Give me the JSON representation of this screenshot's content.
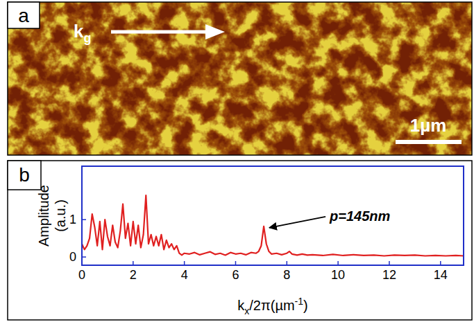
{
  "image_panel": {
    "label": "a",
    "arrow_label": "k",
    "arrow_subscript": "g",
    "scale_bar": "1µm"
  },
  "chart_data": {
    "type": "line",
    "panel": "b",
    "color": "#e02020",
    "ylabel": "Amplitude (a.u.)",
    "xlabel": [
      "k",
      "x",
      "/2π(µm",
      "-1",
      ")"
    ],
    "annotations": [
      {
        "text": "p=145nm",
        "x": 7.1,
        "y": 0.82
      }
    ],
    "xlim": [
      0,
      14.9
    ],
    "ylim": [
      -0.22,
      2.43
    ],
    "xticks": [
      0,
      2,
      4,
      6,
      8,
      10,
      12,
      14
    ],
    "yticks": [
      0,
      1
    ],
    "x": [
      0,
      0.1,
      0.2,
      0.3,
      0.4,
      0.5,
      0.6,
      0.7,
      0.8,
      0.9,
      1.0,
      1.1,
      1.2,
      1.3,
      1.4,
      1.5,
      1.6,
      1.7,
      1.8,
      1.9,
      2.0,
      2.1,
      2.2,
      2.3,
      2.4,
      2.5,
      2.6,
      2.7,
      2.8,
      2.9,
      3.0,
      3.1,
      3.2,
      3.3,
      3.4,
      3.5,
      3.6,
      3.7,
      3.8,
      3.9,
      4.0,
      4.2,
      4.4,
      4.6,
      4.8,
      5.0,
      5.2,
      5.4,
      5.6,
      5.8,
      6.0,
      6.2,
      6.4,
      6.6,
      6.8,
      6.9,
      7.0,
      7.1,
      7.2,
      7.3,
      7.4,
      7.6,
      7.8,
      8.0,
      8.1,
      8.2,
      8.4,
      8.6,
      8.8,
      9.0,
      9.4,
      9.8,
      10.2,
      10.6,
      11.0,
      11.4,
      11.8,
      12.2,
      12.6,
      13.0,
      13.4,
      13.8,
      14.2,
      14.6,
      14.9
    ],
    "values": [
      0.35,
      0.2,
      0.3,
      0.5,
      1.15,
      0.8,
      0.3,
      0.95,
      0.2,
      1.0,
      0.55,
      0.3,
      0.85,
      0.4,
      0.25,
      0.7,
      1.42,
      0.5,
      0.9,
      0.3,
      0.95,
      0.35,
      0.85,
      0.25,
      0.6,
      1.65,
      0.35,
      0.6,
      0.3,
      0.55,
      0.3,
      0.6,
      0.2,
      0.45,
      0.25,
      0.35,
      0.2,
      0.3,
      0.1,
      0.05,
      0.1,
      0.08,
      0.12,
      0.06,
      0.1,
      0.14,
      0.07,
      0.1,
      0.05,
      0.12,
      0.08,
      0.1,
      0.06,
      0.12,
      0.1,
      0.15,
      0.3,
      0.82,
      0.35,
      0.15,
      0.08,
      0.1,
      0.06,
      0.1,
      0.15,
      0.08,
      0.05,
      0.08,
      0.05,
      0.06,
      0.04,
      0.07,
      0.04,
      0.06,
      0.04,
      0.05,
      0.03,
      0.05,
      0.04,
      0.05,
      0.03,
      0.04,
      0.03,
      0.04,
      0.03
    ]
  }
}
